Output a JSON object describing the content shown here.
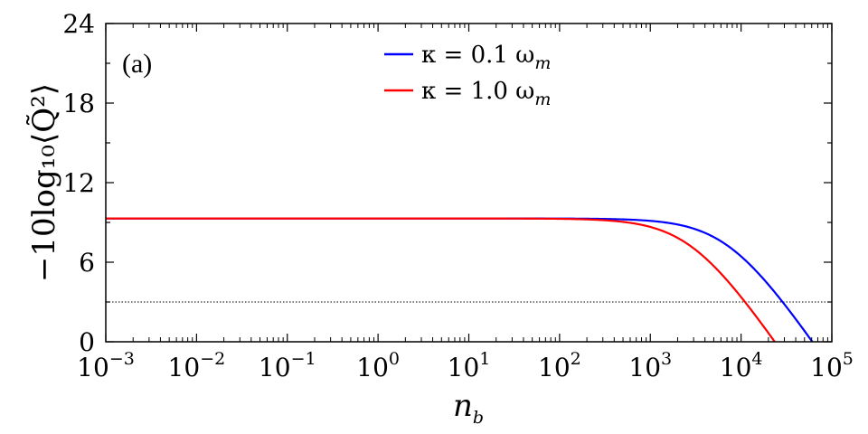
{
  "chart_data": {
    "type": "line",
    "panel_label": "(a)",
    "xlabel": "n_b",
    "xlabel_main": "n",
    "xlabel_sub": "b",
    "ylabel": "−10log₁₀⟨Q̃²⟩",
    "x_scale": "log",
    "xlim": [
      0.001,
      100000
    ],
    "ylim": [
      0,
      24
    ],
    "x_ticks": [
      {
        "base": "10",
        "exp": "−3"
      },
      {
        "base": "10",
        "exp": "−2"
      },
      {
        "base": "10",
        "exp": "−1"
      },
      {
        "base": "10",
        "exp": "0"
      },
      {
        "base": "10",
        "exp": "1"
      },
      {
        "base": "10",
        "exp": "2"
      },
      {
        "base": "10",
        "exp": "3"
      },
      {
        "base": "10",
        "exp": "4"
      },
      {
        "base": "10",
        "exp": "5"
      }
    ],
    "y_ticks": [
      "0",
      "6",
      "12",
      "18",
      "24"
    ],
    "reference_line": {
      "y": 3.0,
      "style": "dotted"
    },
    "legend_position": "top-center",
    "series": [
      {
        "name": "κ = 0.1 ω_m",
        "legend_main": "κ = 0.1 ω",
        "legend_sub": "m",
        "color": "#0000ff",
        "plateau": 9.3,
        "x_zero": 61000
      },
      {
        "name": "κ = 1.0 ω_m",
        "legend_main": "κ = 1.0 ω",
        "legend_sub": "m",
        "color": "#ff0000",
        "plateau": 9.3,
        "x_zero": 23500
      }
    ]
  }
}
